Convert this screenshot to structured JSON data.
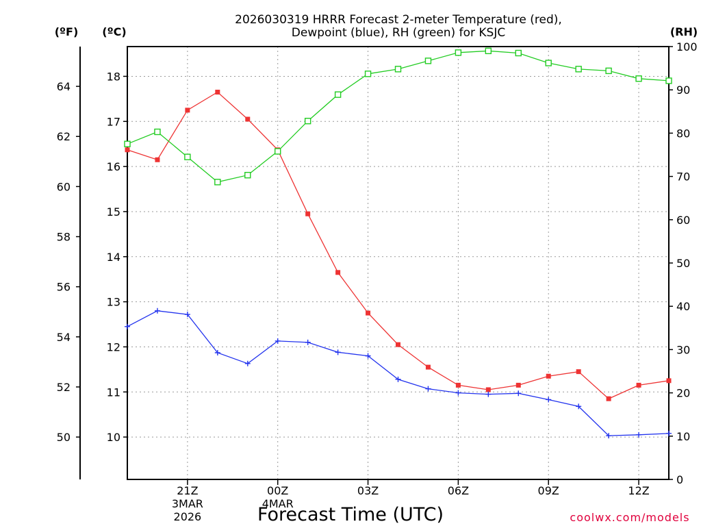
{
  "chart_data": {
    "type": "line",
    "title_lines": [
      "2026030319 HRRR Forecast 2-meter Temperature (red),",
      "Dewpoint (blue), RH (green) for KSJC"
    ],
    "xlabel": "Forecast Time (UTC)",
    "credit": "coolwx.com/models",
    "axis_units": {
      "fahrenheit": "(ºF)",
      "celsius": "(ºC)",
      "rh": "(RH)"
    },
    "x_hours": [
      19,
      20,
      21,
      22,
      23,
      24,
      25,
      26,
      27,
      28,
      29,
      30,
      31,
      32,
      33,
      34,
      35,
      36,
      37
    ],
    "x_range": [
      19,
      37
    ],
    "x_ticks": [
      {
        "hour": 21,
        "label": "21Z",
        "sub1": "3MAR",
        "sub2": "2026"
      },
      {
        "hour": 24,
        "label": "00Z",
        "sub1": "4MAR",
        "sub2": ""
      },
      {
        "hour": 27,
        "label": "03Z",
        "sub1": "",
        "sub2": ""
      },
      {
        "hour": 30,
        "label": "06Z",
        "sub1": "",
        "sub2": ""
      },
      {
        "hour": 33,
        "label": "09Z",
        "sub1": "",
        "sub2": ""
      },
      {
        "hour": 36,
        "label": "12Z",
        "sub1": "",
        "sub2": ""
      }
    ],
    "celsius_range": [
      9.06,
      18.66
    ],
    "celsius_ticks": [
      10,
      11,
      12,
      13,
      14,
      15,
      16,
      17,
      18
    ],
    "fahrenheit_ticks": [
      50,
      52,
      54,
      56,
      58,
      60,
      62,
      64
    ],
    "rh_range": [
      0,
      100
    ],
    "rh_ticks": [
      0,
      10,
      20,
      30,
      40,
      50,
      60,
      70,
      80,
      90,
      100
    ],
    "series": [
      {
        "name": "Temperature",
        "axis": "celsius",
        "color": "#ee3333",
        "marker": "filled-square",
        "values": [
          16.37,
          16.15,
          17.25,
          17.65,
          17.05,
          16.37,
          14.95,
          13.65,
          12.75,
          12.05,
          11.55,
          11.15,
          11.05,
          11.15,
          11.35,
          11.45,
          10.85,
          11.15,
          11.25
        ]
      },
      {
        "name": "Dewpoint",
        "axis": "celsius",
        "color": "#2233ee",
        "marker": "plus",
        "values": [
          12.45,
          12.8,
          12.72,
          11.87,
          11.63,
          12.13,
          12.1,
          11.88,
          11.8,
          11.28,
          11.07,
          10.98,
          10.95,
          10.97,
          10.83,
          10.68,
          10.03,
          10.05,
          10.08
        ]
      },
      {
        "name": "RH",
        "axis": "rh",
        "color": "#22cc22",
        "marker": "open-square",
        "values": [
          77.5,
          80.3,
          74.5,
          68.7,
          70.3,
          75.8,
          82.8,
          88.9,
          93.7,
          94.8,
          96.7,
          98.6,
          99.0,
          98.5,
          96.2,
          94.8,
          94.4,
          92.6,
          92.1
        ]
      }
    ]
  }
}
